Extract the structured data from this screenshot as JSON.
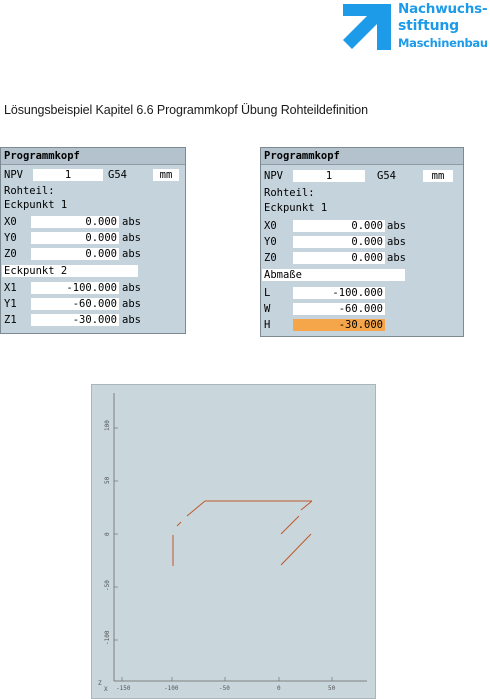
{
  "logo": {
    "line1": "Nachwuchs-",
    "line2": "stiftung",
    "line3": "Maschinenbau",
    "color": "#1d9be8"
  },
  "heading": "Lösungsbeispiel Kapitel 6.6 Programmkopf Übung Rohteildefinition",
  "left_panel": {
    "title": "Programmkopf",
    "npv_label": "NPV",
    "npv_value": "1",
    "g_value": "G54",
    "unit": "mm",
    "rohteil": "Rohteil:",
    "eck1": "Eckpunkt 1",
    "rows1": [
      {
        "label": "X0",
        "value": "0.000",
        "suffix": "abs"
      },
      {
        "label": "Y0",
        "value": "0.000",
        "suffix": "abs"
      },
      {
        "label": "Z0",
        "value": "0.000",
        "suffix": "abs"
      }
    ],
    "eck2": "Eckpunkt 2",
    "rows2": [
      {
        "label": "X1",
        "value": "-100.000",
        "suffix": "abs"
      },
      {
        "label": "Y1",
        "value": "-60.000",
        "suffix": "abs"
      },
      {
        "label": "Z1",
        "value": "-30.000",
        "suffix": "abs"
      }
    ]
  },
  "right_panel": {
    "title": "Programmkopf",
    "npv_label": "NPV",
    "npv_value": "1",
    "g_value": "G54",
    "unit": "mm",
    "rohteil": "Rohteil:",
    "eck1": "Eckpunkt 1",
    "rows1": [
      {
        "label": "X0",
        "value": "0.000",
        "suffix": "abs"
      },
      {
        "label": "Y0",
        "value": "0.000",
        "suffix": "abs"
      },
      {
        "label": "Z0",
        "value": "0.000",
        "suffix": "abs"
      }
    ],
    "abmasse": "Abmaße",
    "rows2": [
      {
        "label": "L",
        "value": "-100.000"
      },
      {
        "label": "W",
        "value": "-60.000"
      },
      {
        "label": "H",
        "value": "-30.000"
      }
    ],
    "highlight_color": "#f5a54a"
  },
  "graph": {
    "y_ticks": [
      "100",
      "50",
      "0",
      "-50",
      "-100"
    ],
    "x_ticks": [
      "-150",
      "-100",
      "-50",
      "0",
      "50"
    ],
    "corner_labels": [
      "Z",
      "X"
    ],
    "line_color": "#c0582a"
  }
}
